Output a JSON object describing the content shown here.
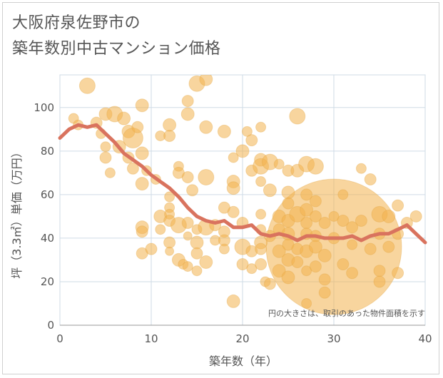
{
  "chart_data": {
    "type": "scatter",
    "title_lines": [
      "大阪府泉佐野市の",
      "築年数別中古マンション価格"
    ],
    "xlabel": "築年数（年）",
    "ylabel": "坪（3.3㎡）単価（万円）",
    "note": "円の大きさは、取引のあった物件面積を示す",
    "xlim": [
      0,
      40
    ],
    "ylim": [
      0,
      115
    ],
    "xticks": [
      "0",
      "10",
      "20",
      "30",
      "40"
    ],
    "yticks": [
      "0",
      "20",
      "40",
      "60",
      "80",
      "100"
    ],
    "grid": true,
    "colors": {
      "bubble": "#f2b24f",
      "trend": "#d9735e",
      "grid": "#cfdbe6",
      "axis": "#555555"
    },
    "trend": {
      "x": [
        0,
        1,
        2,
        3,
        4,
        5,
        6,
        7,
        8,
        9,
        10,
        11,
        12,
        13,
        14,
        15,
        16,
        17,
        18,
        19,
        20,
        21,
        22,
        23,
        24,
        25,
        26,
        27,
        28,
        29,
        30,
        31,
        32,
        33,
        34,
        35,
        36,
        37,
        38,
        39,
        40
      ],
      "y": [
        86,
        90,
        92,
        91,
        92,
        88,
        84,
        79,
        76,
        73,
        69,
        66,
        63,
        59,
        54,
        50,
        48,
        47,
        48,
        45,
        45,
        46,
        42,
        41,
        42,
        41,
        39,
        41,
        41,
        40,
        40,
        40,
        41,
        39,
        41,
        42,
        42,
        44,
        46,
        42,
        38
      ]
    },
    "points": [
      {
        "x": 30,
        "y": 36,
        "s": 95
      },
      {
        "x": 3,
        "y": 110,
        "s": 11
      },
      {
        "x": 1.5,
        "y": 95,
        "s": 7
      },
      {
        "x": 2,
        "y": 92,
        "s": 7
      },
      {
        "x": 4,
        "y": 93,
        "s": 8
      },
      {
        "x": 4.5,
        "y": 88,
        "s": 7
      },
      {
        "x": 5,
        "y": 97,
        "s": 9
      },
      {
        "x": 5,
        "y": 82,
        "s": 7
      },
      {
        "x": 5,
        "y": 77,
        "s": 8
      },
      {
        "x": 5.5,
        "y": 70,
        "s": 7
      },
      {
        "x": 6,
        "y": 97,
        "s": 11
      },
      {
        "x": 6.5,
        "y": 82,
        "s": 9
      },
      {
        "x": 7,
        "y": 95,
        "s": 9
      },
      {
        "x": 7.5,
        "y": 89,
        "s": 9
      },
      {
        "x": 7.5,
        "y": 77,
        "s": 8
      },
      {
        "x": 8,
        "y": 86,
        "s": 14
      },
      {
        "x": 8,
        "y": 72,
        "s": 8
      },
      {
        "x": 8.5,
        "y": 91,
        "s": 8
      },
      {
        "x": 9,
        "y": 101,
        "s": 9
      },
      {
        "x": 9,
        "y": 79,
        "s": 9
      },
      {
        "x": 9,
        "y": 65,
        "s": 9
      },
      {
        "x": 9,
        "y": 45,
        "s": 9
      },
      {
        "x": 9,
        "y": 43,
        "s": 8
      },
      {
        "x": 9,
        "y": 33,
        "s": 8
      },
      {
        "x": 9.5,
        "y": 71,
        "s": 7
      },
      {
        "x": 10,
        "y": 35,
        "s": 8
      },
      {
        "x": 10.5,
        "y": 67,
        "s": 7
      },
      {
        "x": 11,
        "y": 87,
        "s": 7
      },
      {
        "x": 11,
        "y": 50,
        "s": 9
      },
      {
        "x": 11,
        "y": 44,
        "s": 7
      },
      {
        "x": 12,
        "y": 92,
        "s": 9
      },
      {
        "x": 12,
        "y": 87,
        "s": 8
      },
      {
        "x": 12,
        "y": 59,
        "s": 7
      },
      {
        "x": 12,
        "y": 54,
        "s": 7
      },
      {
        "x": 12,
        "y": 51,
        "s": 7
      },
      {
        "x": 12,
        "y": 48,
        "s": 8
      },
      {
        "x": 12,
        "y": 38,
        "s": 8
      },
      {
        "x": 12,
        "y": 34,
        "s": 6
      },
      {
        "x": 13,
        "y": 73,
        "s": 7
      },
      {
        "x": 13,
        "y": 70,
        "s": 8
      },
      {
        "x": 13,
        "y": 46,
        "s": 11
      },
      {
        "x": 13,
        "y": 30,
        "s": 9
      },
      {
        "x": 13.5,
        "y": 28,
        "s": 7
      },
      {
        "x": 14,
        "y": 103,
        "s": 8
      },
      {
        "x": 14,
        "y": 97,
        "s": 9
      },
      {
        "x": 14,
        "y": 68,
        "s": 8
      },
      {
        "x": 14,
        "y": 47,
        "s": 8
      },
      {
        "x": 14,
        "y": 41,
        "s": 6
      },
      {
        "x": 14,
        "y": 27,
        "s": 7
      },
      {
        "x": 14.5,
        "y": 62,
        "s": 8
      },
      {
        "x": 15,
        "y": 111,
        "s": 11
      },
      {
        "x": 15,
        "y": 44,
        "s": 7
      },
      {
        "x": 15,
        "y": 38,
        "s": 9
      },
      {
        "x": 15,
        "y": 33,
        "s": 8
      },
      {
        "x": 15,
        "y": 25,
        "s": 7
      },
      {
        "x": 16,
        "y": 113,
        "s": 9
      },
      {
        "x": 16,
        "y": 91,
        "s": 9
      },
      {
        "x": 16,
        "y": 68,
        "s": 11
      },
      {
        "x": 16,
        "y": 45,
        "s": 11
      },
      {
        "x": 16,
        "y": 29,
        "s": 9
      },
      {
        "x": 17,
        "y": 46,
        "s": 8
      },
      {
        "x": 17,
        "y": 39,
        "s": 7
      },
      {
        "x": 18,
        "y": 89,
        "s": 9
      },
      {
        "x": 18,
        "y": 54,
        "s": 8
      },
      {
        "x": 18,
        "y": 43,
        "s": 8
      },
      {
        "x": 18,
        "y": 39,
        "s": 8
      },
      {
        "x": 18,
        "y": 35,
        "s": 7
      },
      {
        "x": 19,
        "y": 77,
        "s": 7
      },
      {
        "x": 19,
        "y": 66,
        "s": 9
      },
      {
        "x": 19,
        "y": 63,
        "s": 9
      },
      {
        "x": 19,
        "y": 52,
        "s": 8
      },
      {
        "x": 19,
        "y": 11,
        "s": 9
      },
      {
        "x": 20,
        "y": 80,
        "s": 9
      },
      {
        "x": 20,
        "y": 47,
        "s": 8
      },
      {
        "x": 20,
        "y": 36,
        "s": 11
      },
      {
        "x": 20,
        "y": 28,
        "s": 8
      },
      {
        "x": 20.5,
        "y": 89,
        "s": 7
      },
      {
        "x": 21,
        "y": 85,
        "s": 8
      },
      {
        "x": 21,
        "y": 71,
        "s": 8
      },
      {
        "x": 21,
        "y": 34,
        "s": 8
      },
      {
        "x": 21,
        "y": 26,
        "s": 7
      },
      {
        "x": 22,
        "y": 91,
        "s": 7
      },
      {
        "x": 22,
        "y": 76,
        "s": 9
      },
      {
        "x": 22,
        "y": 73,
        "s": 11
      },
      {
        "x": 22,
        "y": 66,
        "s": 7
      },
      {
        "x": 22,
        "y": 51,
        "s": 7
      },
      {
        "x": 22,
        "y": 44,
        "s": 7
      },
      {
        "x": 22,
        "y": 38,
        "s": 9
      },
      {
        "x": 22,
        "y": 35,
        "s": 8
      },
      {
        "x": 22,
        "y": 28,
        "s": 8
      },
      {
        "x": 22.5,
        "y": 20,
        "s": 7
      },
      {
        "x": 23,
        "y": 75,
        "s": 11
      },
      {
        "x": 23,
        "y": 62,
        "s": 9
      },
      {
        "x": 23,
        "y": 41,
        "s": 8
      },
      {
        "x": 23,
        "y": 19,
        "s": 8
      },
      {
        "x": 24,
        "y": 74,
        "s": 7
      },
      {
        "x": 24,
        "y": 50,
        "s": 9
      },
      {
        "x": 24,
        "y": 44,
        "s": 8
      },
      {
        "x": 24,
        "y": 34,
        "s": 9
      },
      {
        "x": 24,
        "y": 25,
        "s": 9
      },
      {
        "x": 25,
        "y": 71,
        "s": 8
      },
      {
        "x": 25,
        "y": 61,
        "s": 9
      },
      {
        "x": 25,
        "y": 56,
        "s": 8
      },
      {
        "x": 25,
        "y": 48,
        "s": 9
      },
      {
        "x": 25,
        "y": 42,
        "s": 9
      },
      {
        "x": 25,
        "y": 37,
        "s": 8
      },
      {
        "x": 25,
        "y": 30,
        "s": 9
      },
      {
        "x": 25,
        "y": 22,
        "s": 9
      },
      {
        "x": 26,
        "y": 96,
        "s": 11
      },
      {
        "x": 26,
        "y": 71,
        "s": 9
      },
      {
        "x": 26,
        "y": 51,
        "s": 11
      },
      {
        "x": 26,
        "y": 35,
        "s": 8
      },
      {
        "x": 26,
        "y": 29,
        "s": 8
      },
      {
        "x": 27,
        "y": 74,
        "s": 11
      },
      {
        "x": 27,
        "y": 60,
        "s": 8
      },
      {
        "x": 27,
        "y": 53,
        "s": 9
      },
      {
        "x": 27,
        "y": 47,
        "s": 8
      },
      {
        "x": 27,
        "y": 42,
        "s": 8
      },
      {
        "x": 27,
        "y": 34,
        "s": 9
      },
      {
        "x": 27,
        "y": 25,
        "s": 7
      },
      {
        "x": 27,
        "y": 10,
        "s": 7
      },
      {
        "x": 28,
        "y": 73,
        "s": 11
      },
      {
        "x": 28,
        "y": 57,
        "s": 8
      },
      {
        "x": 28,
        "y": 50,
        "s": 8
      },
      {
        "x": 28,
        "y": 41,
        "s": 8
      },
      {
        "x": 28,
        "y": 36,
        "s": 9
      },
      {
        "x": 28,
        "y": 27,
        "s": 8
      },
      {
        "x": 29,
        "y": 47,
        "s": 8
      },
      {
        "x": 29,
        "y": 32,
        "s": 9
      },
      {
        "x": 29,
        "y": 21,
        "s": 8
      },
      {
        "x": 29,
        "y": 15,
        "s": 8
      },
      {
        "x": 30,
        "y": 50,
        "s": 7
      },
      {
        "x": 30,
        "y": 40,
        "s": 8
      },
      {
        "x": 31,
        "y": 60,
        "s": 7
      },
      {
        "x": 31,
        "y": 48,
        "s": 8
      },
      {
        "x": 31,
        "y": 28,
        "s": 8
      },
      {
        "x": 32,
        "y": 45,
        "s": 8
      },
      {
        "x": 32,
        "y": 37,
        "s": 7
      },
      {
        "x": 32,
        "y": 24,
        "s": 8
      },
      {
        "x": 33,
        "y": 72,
        "s": 7
      },
      {
        "x": 33,
        "y": 48,
        "s": 8
      },
      {
        "x": 34,
        "y": 67,
        "s": 8
      },
      {
        "x": 34,
        "y": 35,
        "s": 8
      },
      {
        "x": 35,
        "y": 51,
        "s": 11
      },
      {
        "x": 35,
        "y": 42,
        "s": 8
      },
      {
        "x": 35,
        "y": 25,
        "s": 8
      },
      {
        "x": 35,
        "y": 20,
        "s": 8
      },
      {
        "x": 36,
        "y": 50,
        "s": 9
      },
      {
        "x": 36,
        "y": 36,
        "s": 8
      },
      {
        "x": 37,
        "y": 55,
        "s": 8
      },
      {
        "x": 37,
        "y": 42,
        "s": 8
      },
      {
        "x": 37,
        "y": 24,
        "s": 8
      },
      {
        "x": 38,
        "y": 47,
        "s": 8
      },
      {
        "x": 39,
        "y": 50,
        "s": 8
      }
    ]
  }
}
